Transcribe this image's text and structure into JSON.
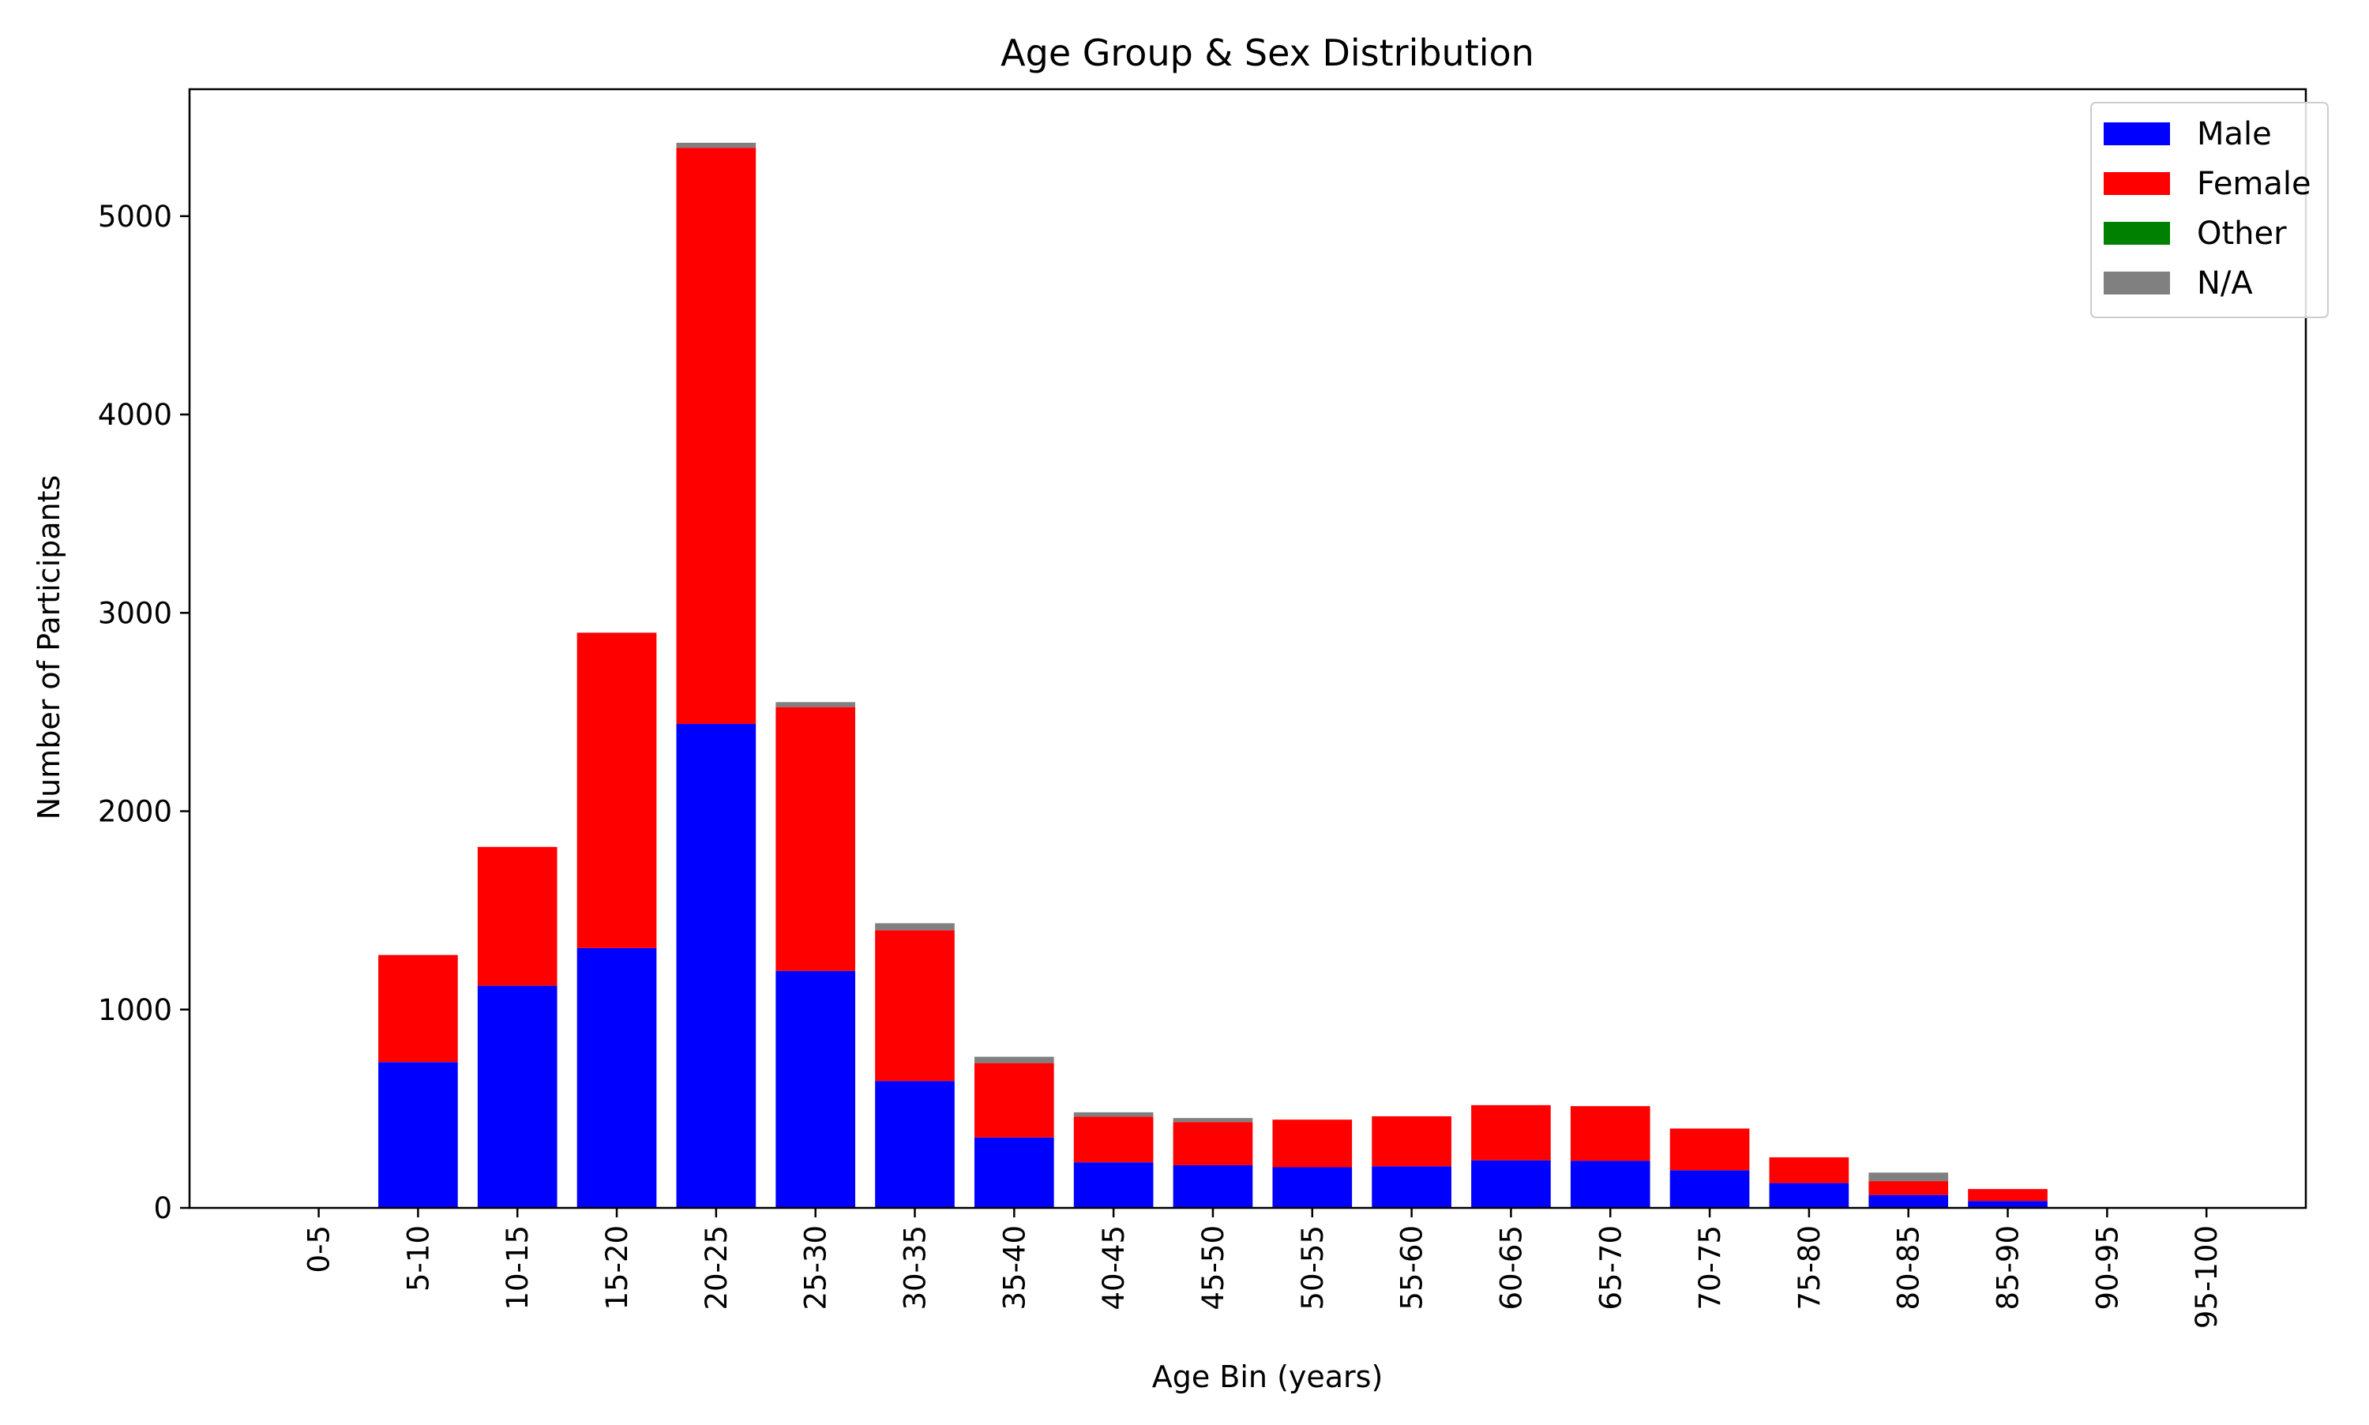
{
  "chart_data": {
    "type": "bar",
    "stacked": true,
    "title": "Age Group & Sex Distribution",
    "xlabel": "Age Bin (years)",
    "ylabel": "Number of Participants",
    "categories": [
      "0-5",
      "5-10",
      "10-15",
      "15-20",
      "20-25",
      "25-30",
      "30-35",
      "35-40",
      "40-45",
      "45-50",
      "50-55",
      "55-60",
      "60-65",
      "65-70",
      "70-75",
      "75-80",
      "80-85",
      "85-90",
      "90-95",
      "95-100"
    ],
    "ylim": [
      0,
      5640
    ],
    "yticks": [
      0,
      1000,
      2000,
      3000,
      4000,
      5000
    ],
    "grid": false,
    "legend_position": "top-right",
    "series": [
      {
        "name": "Male",
        "color": "#0000ff",
        "values": [
          0,
          735,
          1120,
          1310,
          2440,
          1195,
          640,
          355,
          230,
          215,
          205,
          210,
          240,
          238,
          190,
          125,
          65,
          35,
          0,
          0
        ]
      },
      {
        "name": "Female",
        "color": "#ff0000",
        "values": [
          0,
          540,
          700,
          1590,
          2905,
          1330,
          760,
          375,
          230,
          218,
          240,
          252,
          278,
          275,
          210,
          130,
          70,
          60,
          0,
          0
        ]
      },
      {
        "name": "Other",
        "color": "#008000",
        "values": [
          0,
          0,
          0,
          0,
          0,
          0,
          0,
          0,
          0,
          0,
          0,
          0,
          0,
          0,
          0,
          0,
          0,
          0,
          0,
          0
        ]
      },
      {
        "name": "N/A",
        "color": "#808080",
        "values": [
          0,
          0,
          0,
          0,
          25,
          25,
          35,
          32,
          22,
          20,
          0,
          0,
          0,
          0,
          0,
          0,
          43,
          0,
          0,
          0
        ]
      }
    ]
  }
}
